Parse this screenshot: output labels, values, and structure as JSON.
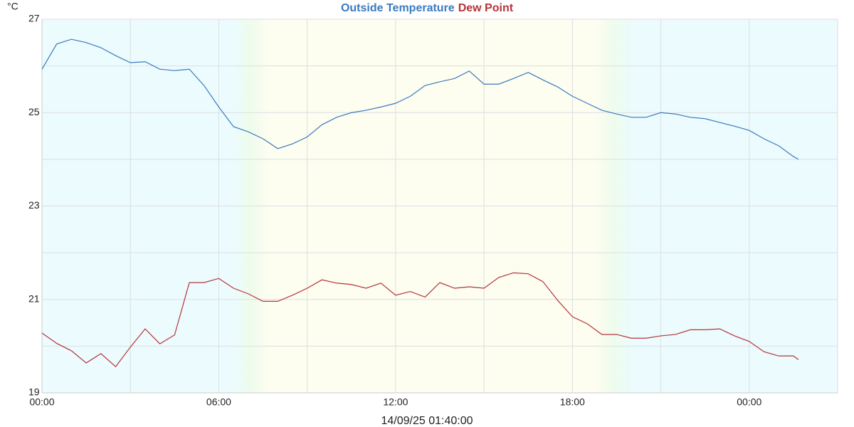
{
  "chart_data": {
    "type": "line",
    "y_unit": "°C",
    "timestamp": "14/09/25 01:40:00",
    "x": [
      0,
      0.5,
      1,
      1.5,
      2,
      2.5,
      3,
      3.5,
      4,
      4.5,
      5,
      5.5,
      6,
      6.5,
      7,
      7.5,
      8,
      8.5,
      9,
      9.5,
      10,
      10.5,
      11,
      11.5,
      12,
      12.5,
      13,
      13.5,
      14,
      14.5,
      15,
      15.5,
      16,
      16.5,
      17,
      17.5,
      18,
      18.5,
      19,
      19.5,
      20,
      20.5,
      21,
      21.5,
      22,
      22.5,
      23,
      23.5,
      24,
      24.5,
      25,
      25.5,
      25.67
    ],
    "series": [
      {
        "name": "Outside Temperature",
        "color": "#3a7bbf",
        "values": [
          25.93,
          26.47,
          26.57,
          26.5,
          26.39,
          26.22,
          26.07,
          26.09,
          25.93,
          25.9,
          25.93,
          25.58,
          25.12,
          24.7,
          24.59,
          24.44,
          24.23,
          24.33,
          24.48,
          24.74,
          24.9,
          25.0,
          25.05,
          25.12,
          25.2,
          25.35,
          25.58,
          25.66,
          25.73,
          25.89,
          25.61,
          25.61,
          25.73,
          25.86,
          25.7,
          25.55,
          25.35,
          25.2,
          25.05,
          24.97,
          24.9,
          24.9,
          25.0,
          24.97,
          24.9,
          24.87,
          24.79,
          24.71,
          24.62,
          24.44,
          24.29,
          24.06,
          24.0
        ]
      },
      {
        "name": "Dew Point",
        "color": "#b5343a",
        "values": [
          20.28,
          20.06,
          19.9,
          19.64,
          19.84,
          19.56,
          19.98,
          20.37,
          20.05,
          20.24,
          21.36,
          21.36,
          21.45,
          21.24,
          21.12,
          20.96,
          20.96,
          21.09,
          21.24,
          21.42,
          21.35,
          21.32,
          21.24,
          21.35,
          21.09,
          21.17,
          21.05,
          21.36,
          21.24,
          21.27,
          21.24,
          21.47,
          21.57,
          21.55,
          21.38,
          20.98,
          20.63,
          20.48,
          20.25,
          20.25,
          20.17,
          20.17,
          20.22,
          20.25,
          20.35,
          20.35,
          20.37,
          20.22,
          20.1,
          19.88,
          19.79,
          19.79,
          19.71
        ]
      }
    ],
    "xlim": [
      0,
      27
    ],
    "xticks": [
      {
        "value": 0,
        "label": "00:00"
      },
      {
        "value": 6,
        "label": "06:00"
      },
      {
        "value": 12,
        "label": "12:00"
      },
      {
        "value": 18,
        "label": "18:00"
      },
      {
        "value": 24,
        "label": "00:00"
      }
    ],
    "minor_xticks": [
      3,
      9,
      15,
      21
    ],
    "ylim": [
      19,
      27
    ],
    "yticks": [
      19,
      21,
      23,
      25,
      27
    ],
    "minor_yticks": [
      20,
      22,
      24,
      26
    ],
    "grid": true
  }
}
